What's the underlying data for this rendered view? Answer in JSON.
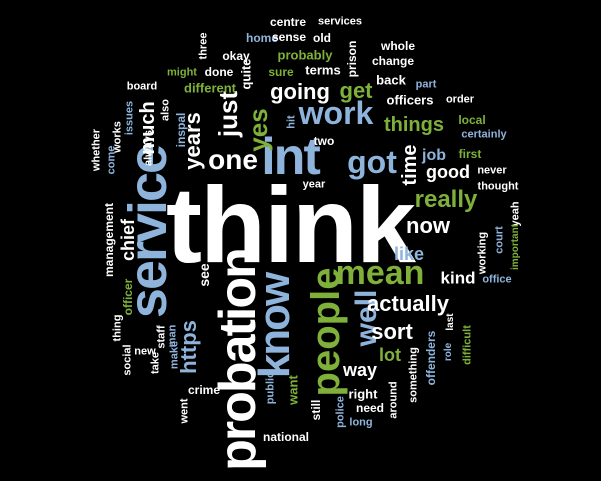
{
  "cloud": {
    "colors": {
      "background": "#000000",
      "white": "#ffffff",
      "blue": "#8fb4dc",
      "green": "#7fb13a"
    },
    "words": [
      {
        "text": "think",
        "color": "white"
      },
      {
        "text": "int",
        "color": "blue"
      },
      {
        "text": "service",
        "color": "blue"
      },
      {
        "text": "probation",
        "color": "white"
      },
      {
        "text": "know",
        "color": "blue"
      },
      {
        "text": "people",
        "color": "green"
      },
      {
        "text": "mean",
        "color": "green"
      },
      {
        "text": "work",
        "color": "blue"
      },
      {
        "text": "got",
        "color": "blue"
      },
      {
        "text": "one",
        "color": "white"
      },
      {
        "text": "well",
        "color": "blue"
      },
      {
        "text": "really",
        "color": "green"
      },
      {
        "text": "going",
        "color": "white"
      },
      {
        "text": "just",
        "color": "white"
      },
      {
        "text": "yes",
        "color": "green"
      },
      {
        "text": "get",
        "color": "green"
      },
      {
        "text": "things",
        "color": "green"
      },
      {
        "text": "much",
        "color": "white"
      },
      {
        "text": "years",
        "color": "white"
      },
      {
        "text": "time",
        "color": "white"
      },
      {
        "text": "now",
        "color": "white"
      },
      {
        "text": "actually",
        "color": "white"
      },
      {
        "text": "like",
        "color": "blue"
      },
      {
        "text": "sort",
        "color": "white"
      },
      {
        "text": "kind",
        "color": "white"
      },
      {
        "text": "chief",
        "color": "white"
      },
      {
        "text": "https",
        "color": "blue"
      },
      {
        "text": "good",
        "color": "white"
      },
      {
        "text": "job",
        "color": "blue"
      },
      {
        "text": "way",
        "color": "white"
      },
      {
        "text": "lot",
        "color": "green"
      },
      {
        "text": "see",
        "color": "white"
      },
      {
        "text": "officers",
        "color": "white"
      },
      {
        "text": "different",
        "color": "green"
      },
      {
        "text": "probably",
        "color": "green"
      },
      {
        "text": "terms",
        "color": "white"
      },
      {
        "text": "done",
        "color": "white"
      },
      {
        "text": "quite",
        "color": "white"
      },
      {
        "text": "back",
        "color": "white"
      },
      {
        "text": "two",
        "color": "white"
      },
      {
        "text": "okay",
        "color": "white"
      },
      {
        "text": "sure",
        "color": "green"
      },
      {
        "text": "home",
        "color": "blue"
      },
      {
        "text": "sense",
        "color": "white"
      },
      {
        "text": "old",
        "color": "white"
      },
      {
        "text": "prison",
        "color": "white"
      },
      {
        "text": "change",
        "color": "white"
      },
      {
        "text": "whole",
        "color": "white"
      },
      {
        "text": "centre",
        "color": "white"
      },
      {
        "text": "services",
        "color": "white"
      },
      {
        "text": "three",
        "color": "white"
      },
      {
        "text": "might",
        "color": "green"
      },
      {
        "text": "board",
        "color": "white"
      },
      {
        "text": "issues",
        "color": "blue"
      },
      {
        "text": "always",
        "color": "white"
      },
      {
        "text": "also",
        "color": "white"
      },
      {
        "text": "inspal",
        "color": "blue"
      },
      {
        "text": "part",
        "color": "blue"
      },
      {
        "text": "order",
        "color": "white"
      },
      {
        "text": "local",
        "color": "green"
      },
      {
        "text": "certainly",
        "color": "blue"
      },
      {
        "text": "first",
        "color": "green"
      },
      {
        "text": "never",
        "color": "white"
      },
      {
        "text": "thought",
        "color": "white"
      },
      {
        "text": "yeah",
        "color": "white"
      },
      {
        "text": "court",
        "color": "blue"
      },
      {
        "text": "important",
        "color": "green"
      },
      {
        "text": "working",
        "color": "white"
      },
      {
        "text": "office",
        "color": "blue"
      },
      {
        "text": "year",
        "color": "white"
      },
      {
        "text": "hit",
        "color": "blue"
      },
      {
        "text": "whether",
        "color": "white"
      },
      {
        "text": "come",
        "color": "blue"
      },
      {
        "text": "works",
        "color": "white"
      },
      {
        "text": "management",
        "color": "white"
      },
      {
        "text": "officer",
        "color": "green"
      },
      {
        "text": "thing",
        "color": "white"
      },
      {
        "text": "new",
        "color": "white"
      },
      {
        "text": "staff",
        "color": "white"
      },
      {
        "text": "man",
        "color": "blue"
      },
      {
        "text": "social",
        "color": "white"
      },
      {
        "text": "take",
        "color": "white"
      },
      {
        "text": "make",
        "color": "blue"
      },
      {
        "text": "crime",
        "color": "white"
      },
      {
        "text": "went",
        "color": "white"
      },
      {
        "text": "public",
        "color": "blue"
      },
      {
        "text": "want",
        "color": "green"
      },
      {
        "text": "still",
        "color": "white"
      },
      {
        "text": "police",
        "color": "blue"
      },
      {
        "text": "right",
        "color": "white"
      },
      {
        "text": "need",
        "color": "white"
      },
      {
        "text": "long",
        "color": "blue"
      },
      {
        "text": "around",
        "color": "white"
      },
      {
        "text": "something",
        "color": "white"
      },
      {
        "text": "offenders",
        "color": "blue"
      },
      {
        "text": "role",
        "color": "blue"
      },
      {
        "text": "last",
        "color": "white"
      },
      {
        "text": "difficult",
        "color": "green"
      },
      {
        "text": "national",
        "color": "white"
      }
    ]
  }
}
